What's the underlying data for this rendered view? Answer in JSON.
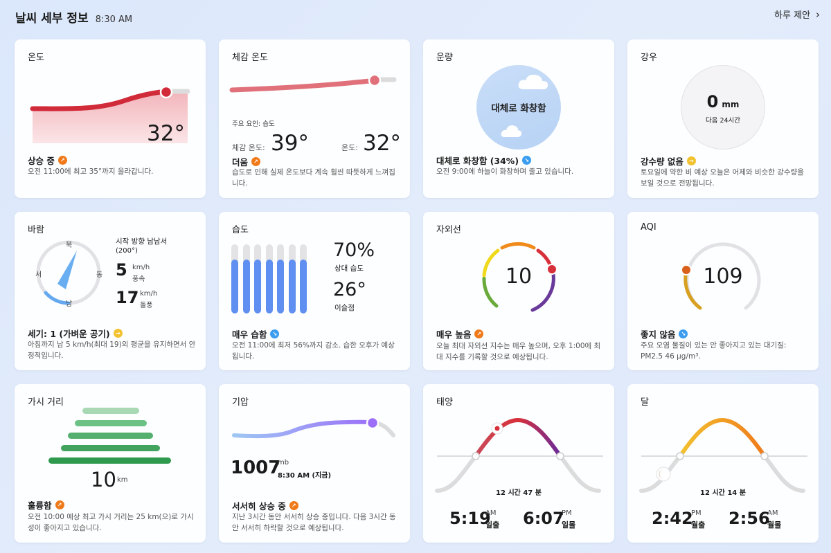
{
  "header": {
    "title": "날씨 세부 정보",
    "time": "8:30 AM",
    "suggest": "하루 제안",
    "chevron": "›"
  },
  "temperature": {
    "title": "온도",
    "value": "32°",
    "status": "상승 중",
    "desc": "오전 11:00에 최고 35°까지 올라갑니다."
  },
  "feels": {
    "title": "체감 온도",
    "factor": "주요 요인: 습도",
    "feels_label": "체감 온도:",
    "feels_value": "39°",
    "temp_label": "온도:",
    "temp_value": "32°",
    "status": "더움",
    "desc": "습도로 인해 실제 온도보다 계속 훨씬 따뜻하게 느껴집니다."
  },
  "cloud": {
    "title": "운량",
    "center": "대체로 화창함",
    "status": "대체로 화창함 (34%)",
    "desc": "오전 9:00에 하늘이 화창하며 줄고 있습니다."
  },
  "rain": {
    "title": "강우",
    "value": "0",
    "unit": "mm",
    "sub": "다음 24시간",
    "status": "강수량 없음",
    "desc": "토요일에 약한 비 예상 오늘은 어제와 비슷한 강수량을 보일 것으로 전망됩니다."
  },
  "wind": {
    "title": "바람",
    "dir_n": "북",
    "dir_s": "남",
    "dir_w": "서",
    "dir_e": "동",
    "direction": "시작 방향 남남서",
    "degrees": "(200°)",
    "speed": "5",
    "speed_unit": "km/h",
    "speed_label": "풍속",
    "gust": "17",
    "gust_unit": "km/h",
    "gust_label": "돌풍",
    "status": "세기: 1 (가벼운 공기)",
    "desc": "아침까지 남 5 km/h(최대 19)의 평균을 유지하면서 안정적입니다."
  },
  "humidity": {
    "title": "습도",
    "value": "70%",
    "value_label": "상대 습도",
    "dew": "26°",
    "dew_label": "이슬점",
    "status": "매우 습함",
    "desc": "오전 11:00에 최저 56%까지 감소. 습한 오후가 예상됩니다.",
    "bars": [
      0.7,
      0.7,
      0.7,
      0.7,
      0.7,
      0.7,
      0.7
    ]
  },
  "uv": {
    "title": "자외선",
    "value": "10",
    "status": "매우 높음",
    "desc": "오늘 최대 자외선 지수는 매우 높으며, 오후 1:00에 최대 지수를 기록할 것으로 예상됩니다."
  },
  "aqi": {
    "title": "AQI",
    "value": "109",
    "status": "좋지 않음",
    "desc": "주요 오염 물질이 있는 안 좋아지고 있는 대기질: PM2.5 46 μg/m³."
  },
  "visibility": {
    "title": "가시 거리",
    "value": "10",
    "unit": "km",
    "status": "훌륭함",
    "desc": "오전 10:00 예상 최고 가시 거리는 25 km(으)로 가시성이 좋아지고 있습니다."
  },
  "pressure": {
    "title": "기압",
    "value": "1007",
    "unit": "mb",
    "time": "8:30 AM (지금)",
    "status": "서서히 상승 중",
    "desc": "지난 3시간 동안 서서히 상승 중입니다. 다음 3시간 동안 서서히 하락할 것으로 예상됩니다."
  },
  "sun": {
    "title": "태양",
    "duration": "12 시간 47 분",
    "rise": "5:19",
    "rise_ampm": "AM",
    "rise_label": "일출",
    "set": "6:07",
    "set_ampm": "PM",
    "set_label": "일몰"
  },
  "moon": {
    "title": "달",
    "duration": "12 시간 14 분",
    "rise": "2:42",
    "rise_ampm": "PM",
    "rise_label": "월출",
    "set": "2:56",
    "set_ampm": "AM",
    "set_label": "월몰"
  },
  "colors": {
    "temp": "#d12b3a",
    "pressure": "#9b7bff",
    "humidity_bar": "#5f8ff0",
    "vis_bar": "#3aa35a"
  }
}
